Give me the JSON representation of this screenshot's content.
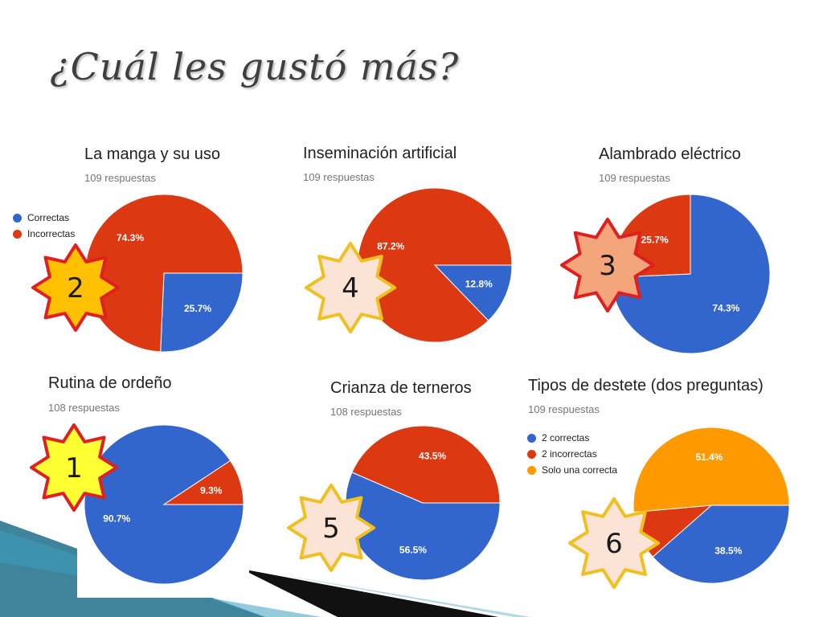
{
  "title": "¿Cuál les gustó más?",
  "colors": {
    "blue": "#3366cc",
    "red": "#dc3912",
    "orange": "#ff9900"
  },
  "chart_data": [
    {
      "type": "pie",
      "title": "La manga y su uso",
      "subtitle": "109 respuestas",
      "legend": [
        "Correctas",
        "Incorrectas"
      ],
      "slices": [
        {
          "name": "Correctas",
          "value": 25.7,
          "label": "25.7%",
          "color": "#3366cc"
        },
        {
          "name": "Incorrectas",
          "value": 74.3,
          "label": "74.3%",
          "color": "#dc3912"
        }
      ],
      "rank": "2"
    },
    {
      "type": "pie",
      "title": "Inseminación artificial",
      "subtitle": "109 respuestas",
      "slices": [
        {
          "name": "Correctas",
          "value": 12.8,
          "label": "12.8%",
          "color": "#3366cc"
        },
        {
          "name": "Incorrectas",
          "value": 87.2,
          "label": "87.2%",
          "color": "#dc3912"
        }
      ],
      "rank": "4"
    },
    {
      "type": "pie",
      "title": "Alambrado eléctrico",
      "subtitle": "109 respuestas",
      "slices": [
        {
          "name": "Correctas",
          "value": 74.3,
          "label": "74.3%",
          "color": "#3366cc"
        },
        {
          "name": "Incorrectas",
          "value": 25.7,
          "label": "25.7%",
          "color": "#dc3912"
        }
      ],
      "rank": "3"
    },
    {
      "type": "pie",
      "title": "Rutina de ordeño",
      "subtitle": "108 respuestas",
      "slices": [
        {
          "name": "Correctas",
          "value": 90.7,
          "label": "90.7%",
          "color": "#3366cc"
        },
        {
          "name": "Incorrectas",
          "value": 9.3,
          "label": "9.3%",
          "color": "#dc3912"
        }
      ],
      "rank": "1"
    },
    {
      "type": "pie",
      "title": "Crianza de terneros",
      "subtitle": "108 respuestas",
      "slices": [
        {
          "name": "Correctas",
          "value": 56.5,
          "label": "56.5%",
          "color": "#3366cc"
        },
        {
          "name": "Incorrectas",
          "value": 43.5,
          "label": "43.5%",
          "color": "#dc3912"
        }
      ],
      "rank": "5"
    },
    {
      "type": "pie",
      "title": "Tipos de destete (dos preguntas)",
      "subtitle": "109 respuestas",
      "legend": [
        "2 correctas",
        "2 incorrectas",
        "Solo una correcta"
      ],
      "slices": [
        {
          "name": "2 correctas",
          "value": 38.5,
          "label": "38.5%",
          "color": "#3366cc"
        },
        {
          "name": "2 incorrectas",
          "value": 10.1,
          "label": "",
          "color": "#dc3912"
        },
        {
          "name": "Solo una correcta",
          "value": 51.4,
          "label": "51.4%",
          "color": "#ff9900"
        }
      ],
      "rank": "6"
    }
  ]
}
